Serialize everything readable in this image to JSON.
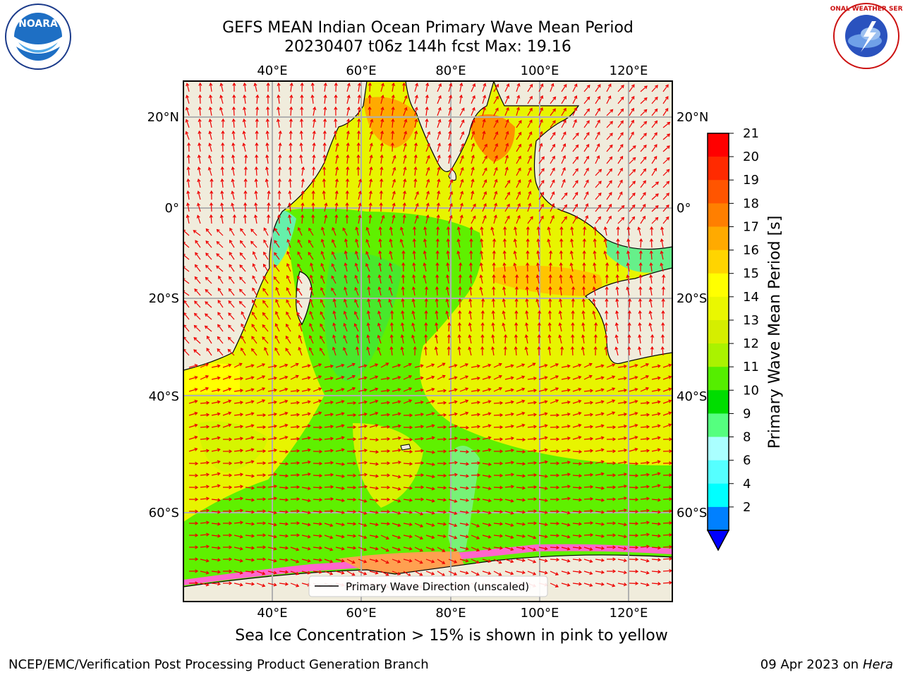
{
  "header": {
    "title_line1": "GEFS MEAN Indian Ocean Primary Wave Mean Period",
    "title_line2": "20230407 t06z 144h fcst   Max: 19.16"
  },
  "logos": {
    "left": "NOARA",
    "right_ring": "NATIONAL WEATHER SERVICE"
  },
  "map": {
    "lon_ticks_top": [
      "40°E",
      "60°E",
      "80°E",
      "100°E",
      "120°E"
    ],
    "lon_ticks_bottom": [
      "40°E",
      "60°E",
      "80°E",
      "100°E",
      "120°E"
    ],
    "lat_ticks_left": [
      "20°N",
      "0°",
      "20°S",
      "40°S",
      "60°S"
    ],
    "lat_ticks_right": [
      "20°N",
      "0°",
      "20°S",
      "40°S",
      "60°S"
    ],
    "legend_label": "Primary Wave Direction (unscaled)"
  },
  "colorbar": {
    "label": "Primary Wave Mean Period [s]",
    "ticks": [
      "21",
      "20",
      "19",
      "18",
      "17",
      "16",
      "15",
      "14",
      "13",
      "12",
      "11",
      "10",
      "9",
      "8",
      "6",
      "4",
      "2"
    ],
    "colors": [
      "#ff0000",
      "#ff2a00",
      "#ff5500",
      "#ff7f00",
      "#ffaa00",
      "#ffd400",
      "#ffff00",
      "#eaf700",
      "#d5ee00",
      "#aaf200",
      "#55ee00",
      "#00dd00",
      "#55ff7f",
      "#aaffff",
      "#55ffff",
      "#00ffff",
      "#0080ff"
    ],
    "extend_color": "#0000ff"
  },
  "colors": {
    "land": "#f0ecdc",
    "arrow": "#ee0000",
    "grid": "#b0b0b0",
    "sea_ice": "#ff66cc"
  },
  "footer": {
    "subtitle": "Sea Ice Concentration > 15% is shown in pink to yellow",
    "left": "NCEP/EMC/Verification Post Processing Product Generation Branch",
    "right_date": "09 Apr 2023 on ",
    "right_host": "Hera"
  }
}
